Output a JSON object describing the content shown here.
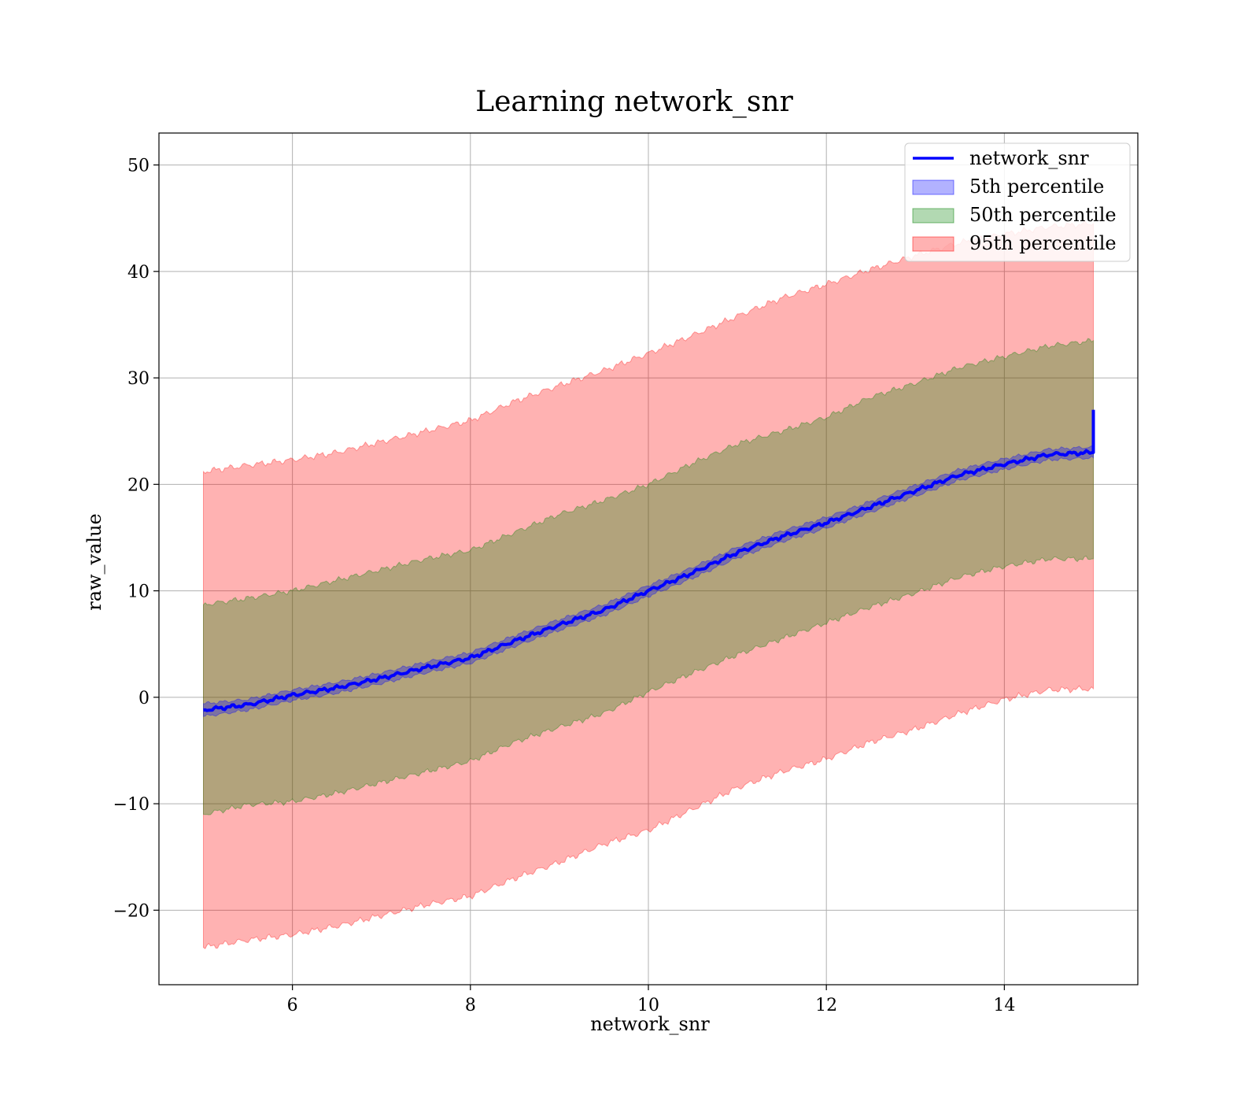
{
  "chart_data": {
    "type": "area",
    "title": "Learning network_snr",
    "xlabel": "network_snr",
    "ylabel": "raw_value",
    "xlim": [
      4.5,
      15.5
    ],
    "ylim": [
      -27,
      53
    ],
    "xticks": [
      6,
      8,
      10,
      12,
      14
    ],
    "yticks": [
      -20,
      -10,
      0,
      10,
      20,
      30,
      40,
      50
    ],
    "ytick_labels": [
      "−20",
      "−10",
      "0",
      "10",
      "20",
      "30",
      "40",
      "50"
    ],
    "grid": true,
    "legend_position": "top-right",
    "x": [
      5,
      5.5,
      6,
      6.5,
      7,
      7.5,
      8,
      8.5,
      9,
      9.5,
      10,
      10.5,
      11,
      11.5,
      12,
      12.5,
      13,
      13.5,
      14,
      14.5,
      15
    ],
    "series": [
      {
        "name": "network_snr",
        "kind": "line",
        "color": "#0000ff",
        "values": [
          -1.2,
          -0.7,
          0.2,
          0.9,
          1.8,
          2.8,
          3.7,
          5.3,
          6.8,
          8.2,
          10.0,
          11.7,
          13.6,
          15.1,
          16.4,
          17.9,
          19.4,
          20.9,
          21.9,
          22.8,
          23.0
        ],
        "end_spike": 27.0
      },
      {
        "name": "5th percentile",
        "kind": "band",
        "color": "#0000ff",
        "lower": [
          -1.8,
          -1.2,
          -0.3,
          0.4,
          1.3,
          2.3,
          3.2,
          4.8,
          6.3,
          7.7,
          9.5,
          11.2,
          13.1,
          14.6,
          15.9,
          17.4,
          18.9,
          20.4,
          21.4,
          22.3,
          22.5
        ],
        "upper": [
          -0.6,
          -0.2,
          0.7,
          1.4,
          2.3,
          3.3,
          4.2,
          5.8,
          7.3,
          8.7,
          10.5,
          12.2,
          14.1,
          15.6,
          16.9,
          18.4,
          19.9,
          21.4,
          22.4,
          23.3,
          23.5
        ]
      },
      {
        "name": "50th percentile",
        "kind": "band",
        "color": "#008000",
        "lower": [
          -11.0,
          -10.1,
          -9.8,
          -9.0,
          -8.0,
          -7.0,
          -6.0,
          -4.2,
          -2.8,
          -1.5,
          0.5,
          2.3,
          4.0,
          5.5,
          7.0,
          8.5,
          9.8,
          11.3,
          12.3,
          13.0,
          13.0
        ],
        "upper": [
          8.7,
          9.3,
          10.0,
          11.0,
          12.0,
          13.0,
          13.8,
          15.5,
          17.2,
          18.5,
          20.0,
          22.0,
          23.8,
          25.0,
          26.3,
          28.2,
          29.5,
          31.0,
          32.0,
          33.0,
          33.5
        ]
      },
      {
        "name": "95th percentile",
        "kind": "band",
        "color": "#ff0000",
        "lower": [
          -23.5,
          -22.8,
          -22.3,
          -21.5,
          -20.5,
          -19.5,
          -18.7,
          -17.0,
          -15.5,
          -13.8,
          -12.5,
          -10.5,
          -8.5,
          -7.0,
          -5.8,
          -4.2,
          -3.0,
          -1.5,
          -0.2,
          0.7,
          0.8
        ],
        "upper": [
          21.2,
          21.8,
          22.3,
          23.0,
          24.0,
          25.0,
          26.0,
          27.8,
          29.3,
          30.7,
          32.3,
          34.0,
          35.8,
          37.5,
          38.8,
          40.2,
          41.5,
          42.7,
          43.5,
          44.2,
          44.5
        ]
      }
    ]
  }
}
